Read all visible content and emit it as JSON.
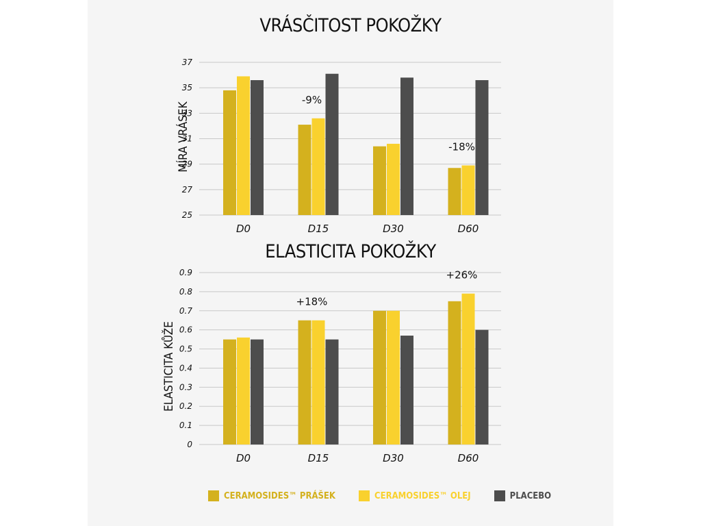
{
  "colors": {
    "prasek": "#D4B11E",
    "olej": "#F9D12E",
    "placebo": "#4D4D4D",
    "grid": "#c8c8c8",
    "text": "#111111"
  },
  "chart_data": [
    {
      "type": "bar",
      "title": "VRÁSČITOST POKOŽKY",
      "xlabel": "",
      "ylabel": "MÍRA VRÁSEK",
      "categories": [
        "D0",
        "D15",
        "D30",
        "D60"
      ],
      "ylim": [
        25,
        37
      ],
      "yticks": [
        25,
        27,
        29,
        31,
        33,
        35,
        37
      ],
      "grid": true,
      "series": [
        {
          "name": "CERAMOSIDES™ PRÁŠEK",
          "color": "#D4B11E",
          "values": [
            34.8,
            32.1,
            30.4,
            28.7
          ]
        },
        {
          "name": "CERAMOSIDES™ OLEJ",
          "color": "#F9D12E",
          "values": [
            35.9,
            32.6,
            30.6,
            28.9
          ]
        },
        {
          "name": "PLACEBO",
          "color": "#4D4D4D",
          "values": [
            35.6,
            36.1,
            35.8,
            35.6
          ]
        }
      ],
      "annotations": [
        {
          "category": "D15",
          "text": "-9%"
        },
        {
          "category": "D60",
          "text": "-18%"
        }
      ]
    },
    {
      "type": "bar",
      "title": "ELASTICITA POKOŽKY",
      "xlabel": "",
      "ylabel": "ELASTICITA KŮŽE",
      "categories": [
        "D0",
        "D15",
        "D30",
        "D60"
      ],
      "ylim": [
        0,
        0.9
      ],
      "yticks": [
        0,
        0.1,
        0.2,
        0.3,
        0.4,
        0.5,
        0.6,
        0.7,
        0.8,
        0.9
      ],
      "grid": true,
      "series": [
        {
          "name": "CERAMOSIDES™ PRÁŠEK",
          "color": "#D4B11E",
          "values": [
            0.55,
            0.65,
            0.7,
            0.75
          ]
        },
        {
          "name": "CERAMOSIDES™ OLEJ",
          "color": "#F9D12E",
          "values": [
            0.56,
            0.65,
            0.7,
            0.79
          ]
        },
        {
          "name": "PLACEBO",
          "color": "#4D4D4D",
          "values": [
            0.55,
            0.55,
            0.57,
            0.6
          ]
        }
      ],
      "annotations": [
        {
          "category": "D15",
          "text": "+18%"
        },
        {
          "category": "D60",
          "text": "+26%"
        }
      ]
    }
  ],
  "legend": [
    {
      "label": "CERAMOSIDES™ PRÁŠEK",
      "color": "#D4B11E"
    },
    {
      "label": "CERAMOSIDES™ OLEJ",
      "color": "#F9D12E"
    },
    {
      "label": "PLACEBO",
      "color": "#4D4D4D"
    }
  ]
}
